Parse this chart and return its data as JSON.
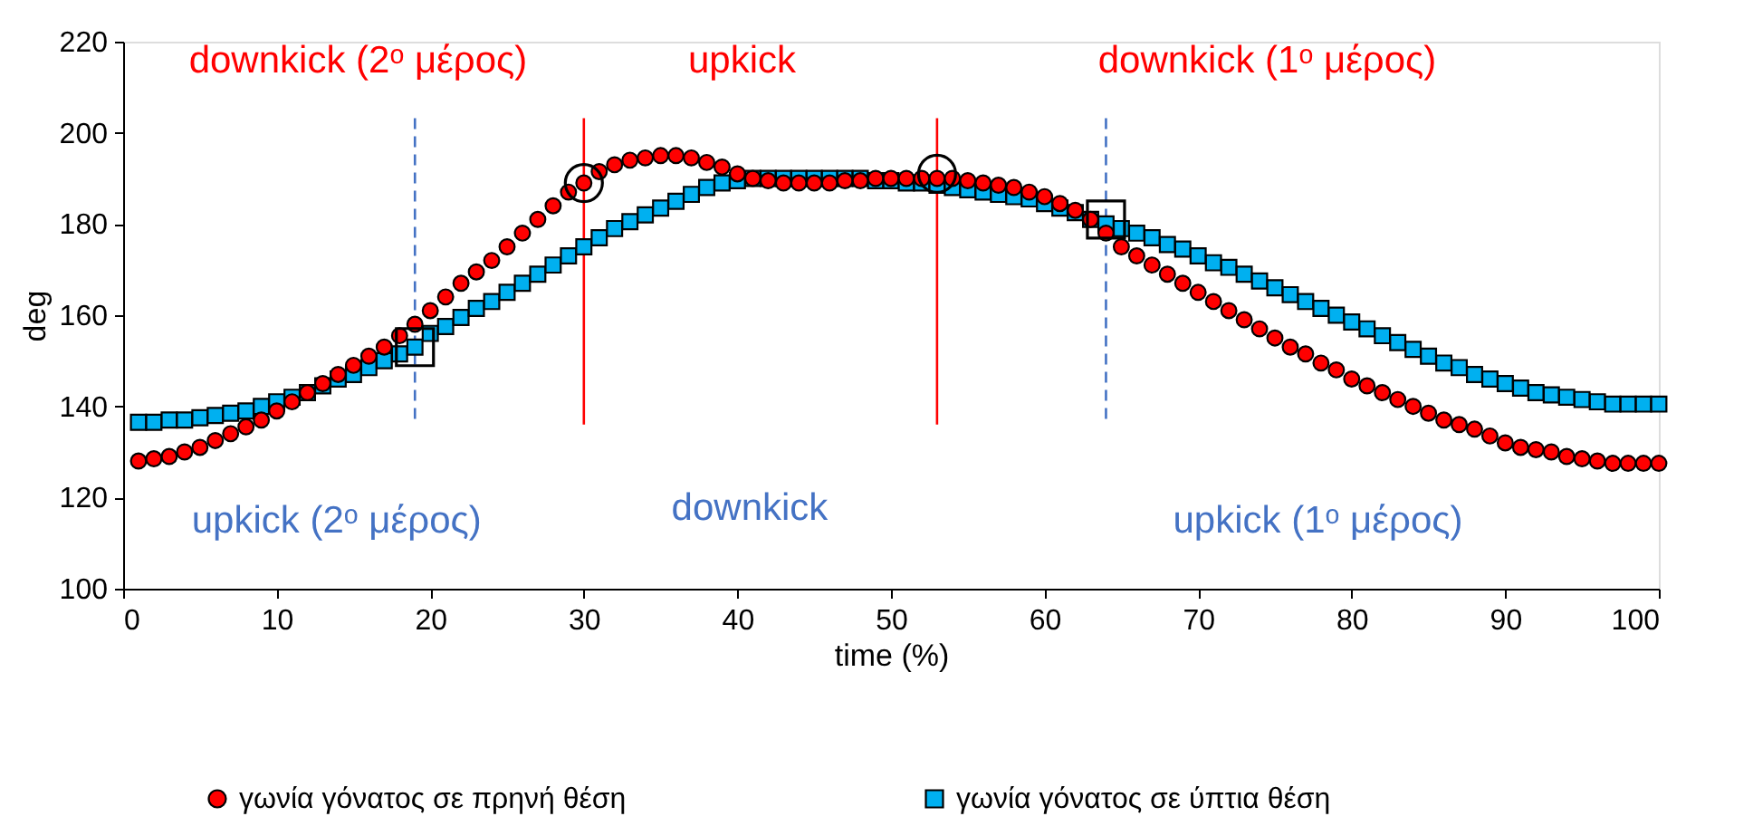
{
  "chart_data": {
    "type": "scatter",
    "xlabel": "time (%)",
    "ylabel": "deg",
    "xlim": [
      0,
      100
    ],
    "xticks": [
      0,
      10,
      20,
      30,
      40,
      50,
      60,
      70,
      80,
      90,
      100
    ],
    "ylim": [
      100,
      220
    ],
    "yticks": [
      100,
      120,
      140,
      160,
      180,
      200,
      220
    ],
    "grid": false,
    "legend": "bottom",
    "series": [
      {
        "name": "γωνία γόνατος σε πρηνή θέση",
        "color": "#ff0000",
        "marker": "circle",
        "x": [
          1,
          2,
          3,
          4,
          5,
          6,
          7,
          8,
          9,
          10,
          11,
          12,
          13,
          14,
          15,
          16,
          17,
          18,
          19,
          20,
          21,
          22,
          23,
          24,
          25,
          26,
          27,
          28,
          29,
          30,
          31,
          32,
          33,
          34,
          35,
          36,
          37,
          38,
          39,
          40,
          41,
          42,
          43,
          44,
          45,
          46,
          47,
          48,
          49,
          50,
          51,
          52,
          53,
          54,
          55,
          56,
          57,
          58,
          59,
          60,
          61,
          62,
          63,
          64,
          65,
          66,
          67,
          68,
          69,
          70,
          71,
          72,
          73,
          74,
          75,
          76,
          77,
          78,
          79,
          80,
          81,
          82,
          83,
          84,
          85,
          86,
          87,
          88,
          89,
          90,
          91,
          92,
          93,
          94,
          95,
          96,
          97,
          98,
          99,
          100
        ],
        "values": [
          128,
          128.5,
          129,
          130,
          131,
          132.5,
          134,
          135.5,
          137,
          139,
          141,
          143,
          145,
          147,
          149,
          151,
          153,
          155.5,
          158,
          161,
          164,
          167,
          169.5,
          172,
          175,
          178,
          181,
          184,
          187,
          189,
          191.5,
          193,
          194,
          194.5,
          195,
          195,
          194.5,
          193.5,
          192.5,
          191,
          190,
          189.5,
          189,
          189,
          189,
          189,
          189.5,
          189.5,
          190,
          190,
          190,
          190,
          190,
          190,
          189.5,
          189,
          188.5,
          188,
          187,
          186,
          184.5,
          183,
          181,
          178,
          175,
          173,
          171,
          169,
          167,
          165,
          163,
          161,
          159,
          157,
          155,
          153,
          151.5,
          149.5,
          148,
          146,
          144.5,
          143,
          141.5,
          140,
          138.5,
          137,
          136,
          135,
          133.5,
          132,
          131,
          130.5,
          130,
          129,
          128.5,
          128,
          127.5,
          127.5,
          127.5,
          127.5
        ]
      },
      {
        "name": "γωνία γόνατος σε ύπτια θέση",
        "color": "#00b0f0",
        "marker": "square",
        "x": [
          1,
          2,
          3,
          4,
          5,
          6,
          7,
          8,
          9,
          10,
          11,
          12,
          13,
          14,
          15,
          16,
          17,
          18,
          19,
          20,
          21,
          22,
          23,
          24,
          25,
          26,
          27,
          28,
          29,
          30,
          31,
          32,
          33,
          34,
          35,
          36,
          37,
          38,
          39,
          40,
          41,
          42,
          43,
          44,
          45,
          46,
          47,
          48,
          49,
          50,
          51,
          52,
          53,
          54,
          55,
          56,
          57,
          58,
          59,
          60,
          61,
          62,
          63,
          64,
          65,
          66,
          67,
          68,
          69,
          70,
          71,
          72,
          73,
          74,
          75,
          76,
          77,
          78,
          79,
          80,
          81,
          82,
          83,
          84,
          85,
          86,
          87,
          88,
          89,
          90,
          91,
          92,
          93,
          94,
          95,
          96,
          97,
          98,
          99,
          100
        ],
        "values": [
          136.5,
          136.5,
          137,
          137,
          137.5,
          138,
          138.5,
          139,
          140,
          141,
          142,
          143,
          144.5,
          146,
          147,
          148.5,
          150,
          151.5,
          153,
          156,
          157.5,
          159.5,
          161.5,
          163,
          165,
          167,
          169,
          171,
          173,
          175,
          177,
          179,
          180.5,
          182,
          183.5,
          185,
          186.5,
          188,
          189,
          189.5,
          190,
          190,
          190,
          190,
          190,
          190,
          190,
          190,
          189.5,
          189.5,
          189,
          189,
          188.5,
          188,
          187.5,
          187,
          186.5,
          186,
          185.5,
          184.5,
          183.5,
          182.5,
          181,
          180,
          179,
          178,
          177,
          175.5,
          174.5,
          173,
          171.5,
          170.5,
          169,
          167.5,
          166,
          164.5,
          163,
          161.5,
          160,
          158.5,
          157,
          155.5,
          154,
          152.5,
          151,
          149.5,
          148.5,
          147,
          146,
          145,
          144,
          143,
          142.5,
          142,
          141.5,
          141,
          140.5,
          140.5,
          140.5,
          140.5
        ]
      },
      {
        "color": "#000000",
        "marker": "circle",
        "x": [
          30,
          53
        ],
        "values": [
          189,
          191
        ]
      },
      {
        "color": "#000000",
        "marker": "square",
        "x": [
          19,
          64
        ],
        "values": [
          153,
          181
        ]
      }
    ],
    "ref_lines": [
      {
        "axis": "x",
        "value": 19,
        "color": "#4472c4",
        "line_style": "dashed"
      },
      {
        "axis": "x",
        "value": 30,
        "color": "#ff0000",
        "line_style": "solid"
      },
      {
        "axis": "x",
        "value": 53,
        "color": "#ff0000",
        "line_style": "solid"
      },
      {
        "axis": "x",
        "value": 64,
        "color": "#4472c4",
        "line_style": "dashed"
      }
    ],
    "annotations": [
      "downkick (2ᵒ μέρος)",
      "upkick",
      "downkick (1ᵒ μέρος)",
      "upkick (2ᵒ μέρος)",
      "downkick",
      "upkick (1ᵒ μέρος)"
    ]
  }
}
